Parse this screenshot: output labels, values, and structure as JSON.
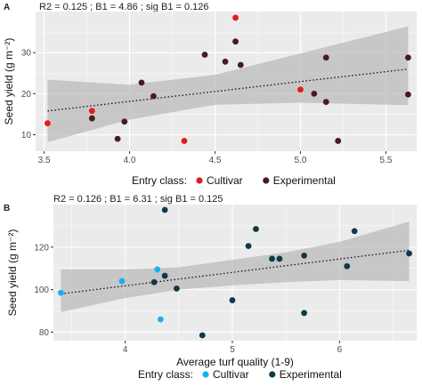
{
  "chart_data": [
    {
      "type": "scatter",
      "panel_label": "A",
      "stats": "R2 =  0.125 ; B1 = 4.86 ; sig B1 = 0.126",
      "title": "",
      "xlabel": "",
      "ylabel": "Seed yield (g m⁻²)",
      "xlim": [
        3.45,
        5.68
      ],
      "ylim": [
        6,
        40
      ],
      "xticks": [
        "3.5",
        "4.0",
        "4.5",
        "5.0",
        "5.5"
      ],
      "xtick_values": [
        3.5,
        4.0,
        4.5,
        5.0,
        5.5
      ],
      "yticks": [
        "10",
        "20",
        "30"
      ],
      "ytick_values": [
        10,
        20,
        30
      ],
      "grid": true,
      "legend_position": "bottom",
      "legend_title": "Entry class:",
      "series": [
        {
          "name": "Cultivar",
          "color": "#e41a1c",
          "points": [
            [
              3.52,
              12.8
            ],
            [
              3.78,
              15.8
            ],
            [
              4.32,
              8.5
            ],
            [
              4.62,
              38.5
            ],
            [
              5.0,
              21.0
            ]
          ]
        },
        {
          "name": "Experimental",
          "color": "#4a1b1b",
          "points": [
            [
              3.78,
              14.0
            ],
            [
              3.93,
              9.0
            ],
            [
              3.97,
              13.2
            ],
            [
              4.07,
              22.7
            ],
            [
              4.14,
              19.4
            ],
            [
              4.44,
              29.5
            ],
            [
              4.56,
              27.8
            ],
            [
              4.62,
              32.7
            ],
            [
              4.65,
              27.0
            ],
            [
              5.08,
              20.0
            ],
            [
              5.15,
              18.0
            ],
            [
              5.15,
              28.8
            ],
            [
              5.22,
              8.5
            ],
            [
              5.63,
              28.8
            ],
            [
              5.63,
              19.8
            ]
          ]
        }
      ],
      "trend": {
        "x": [
          3.52,
          5.63
        ],
        "y": [
          15.8,
          26.0
        ]
      },
      "band": {
        "x": [
          3.52,
          4.0,
          4.5,
          5.0,
          5.63
        ],
        "lower": [
          8.2,
          13.7,
          17.3,
          17.8,
          17.2
        ],
        "upper": [
          23.4,
          22.2,
          24.6,
          29.8,
          36.4
        ]
      }
    },
    {
      "type": "scatter",
      "panel_label": "B",
      "stats": "R2 =  0.126 ; B1 = 6.31 ; sig B1 = 0.125",
      "title": "",
      "xlabel": "Average turf quality (1-9)",
      "ylabel": "Seed yield (g m⁻²)",
      "xlim": [
        3.33,
        6.72
      ],
      "ylim": [
        76,
        140
      ],
      "xticks": [
        "4",
        "5",
        "6"
      ],
      "xtick_values": [
        4,
        5,
        6
      ],
      "yticks": [
        "80",
        "100",
        "120"
      ],
      "ytick_values": [
        80,
        100,
        120
      ],
      "grid": true,
      "legend_position": "bottom",
      "legend_title": "Entry class:",
      "series": [
        {
          "name": "Cultivar",
          "color": "#1ab2e6",
          "points": [
            [
              3.4,
              98.5
            ],
            [
              3.97,
              104.0
            ],
            [
              4.3,
              109.5
            ],
            [
              4.33,
              86.0
            ]
          ]
        },
        {
          "name": "Experimental",
          "color": "#0d3a4a",
          "points": [
            [
              4.27,
              103.5
            ],
            [
              4.37,
              106.5
            ],
            [
              4.37,
              137.5
            ],
            [
              4.48,
              100.5
            ],
            [
              4.72,
              78.5
            ],
            [
              5.0,
              95.0
            ],
            [
              5.15,
              120.5
            ],
            [
              5.22,
              128.5
            ],
            [
              5.37,
              114.5
            ],
            [
              5.44,
              114.5
            ],
            [
              5.67,
              89.0
            ],
            [
              5.67,
              116.0
            ],
            [
              6.07,
              111.0
            ],
            [
              6.14,
              127.5
            ],
            [
              6.65,
              117.0
            ]
          ]
        }
      ],
      "trend": {
        "x": [
          3.4,
          6.65
        ],
        "y": [
          98.0,
          118.5
        ]
      },
      "band": {
        "x": [
          3.4,
          4.0,
          4.5,
          5.0,
          5.5,
          6.0,
          6.65
        ],
        "lower": [
          89.5,
          96.0,
          100.0,
          102.0,
          103.5,
          104.5,
          104.0
        ],
        "upper": [
          109.5,
          109.5,
          110.5,
          114.0,
          117.5,
          122.5,
          132.0
        ]
      }
    }
  ]
}
